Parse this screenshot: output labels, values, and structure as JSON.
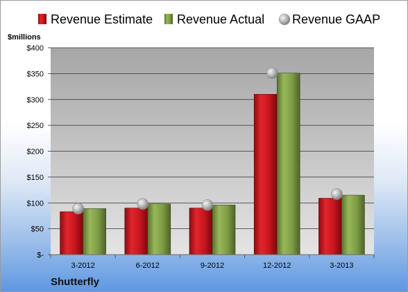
{
  "chart_data": {
    "type": "bar",
    "categories": [
      "3-2012",
      "6-2012",
      "9-2012",
      "12-2012",
      "3-2013"
    ],
    "series": [
      {
        "name": "Revenue Estimate",
        "values": [
          83,
          90,
          90,
          310,
          109
        ],
        "color": "#c8151e",
        "kind": "bar"
      },
      {
        "name": "Revenue Actual",
        "values": [
          89,
          98,
          96,
          351,
          115
        ],
        "color": "#7f9d45",
        "kind": "bar"
      },
      {
        "name": "Revenue GAAP",
        "values": [
          89,
          98,
          96,
          351,
          117
        ],
        "color": "#b4b4b4",
        "kind": "marker"
      }
    ],
    "ylabel": "$millions",
    "ylim": [
      0,
      400
    ],
    "yticks": [
      0,
      50,
      100,
      150,
      200,
      250,
      300,
      350,
      400
    ],
    "ytick_labels": [
      "$-",
      "$50",
      "$100",
      "$150",
      "$200",
      "$250",
      "$300",
      "$350",
      "$400"
    ],
    "grid": true,
    "legend_position": "top",
    "footer": "Shutterfly"
  }
}
